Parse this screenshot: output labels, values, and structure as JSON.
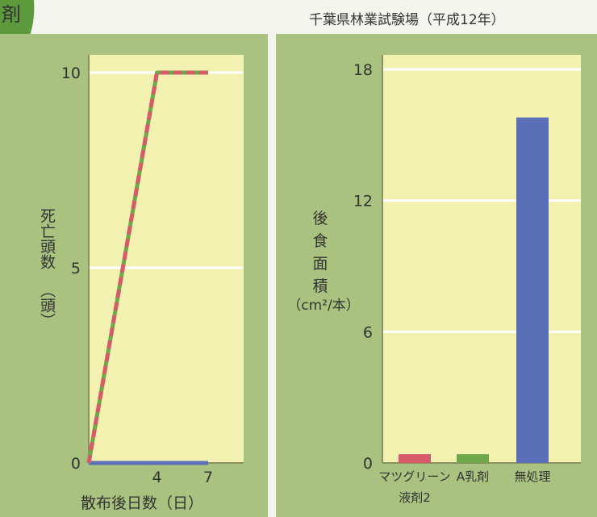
{
  "header": {
    "badge_fragment": "剤",
    "source": "千葉県林業試験場（平成12年）"
  },
  "colors": {
    "panel_bg": "#a9c27f",
    "plot_bg": "#f3f1b0",
    "axis": "#8c8f62",
    "gridline": "#ffffff",
    "red": "#d85a6a",
    "green": "#6ea84a",
    "blue": "#5a6fb8",
    "badge": "#5d9a3e"
  },
  "chart_data": [
    {
      "type": "line",
      "xlabel": "散布後日数（日）",
      "ylabel_lines": [
        "死亡頭数",
        "（頭）"
      ],
      "ylim": [
        0,
        10
      ],
      "xlim": [
        0,
        7
      ],
      "x_ticks": [
        "4",
        "7"
      ],
      "y_ticks": [
        "0",
        "5",
        "10"
      ],
      "grid": true,
      "series": [
        {
          "color": "#d85a6a",
          "x": [
            0,
            4,
            7
          ],
          "y": [
            0,
            10,
            10
          ]
        },
        {
          "color": "#6ea84a",
          "x": [
            0,
            4,
            7
          ],
          "y": [
            0,
            10,
            10
          ]
        },
        {
          "color": "#5a6fb8",
          "x": [
            0,
            4,
            7
          ],
          "y": [
            0,
            0,
            0
          ]
        }
      ]
    },
    {
      "type": "bar",
      "ylabel_lines": [
        "後",
        "食",
        "面",
        "積",
        "（cm²/本）"
      ],
      "ylim": [
        0,
        18
      ],
      "y_ticks": [
        "0",
        "6",
        "12",
        "18"
      ],
      "grid": true,
      "categories": [
        [
          "マツグリーン",
          "液剤2"
        ],
        [
          "A乳剤"
        ],
        [
          "無処理"
        ]
      ],
      "values": [
        0.4,
        0.4,
        15.8
      ],
      "bar_colors": [
        "#d85a6a",
        "#6ea84a",
        "#5a6fb8"
      ]
    }
  ]
}
